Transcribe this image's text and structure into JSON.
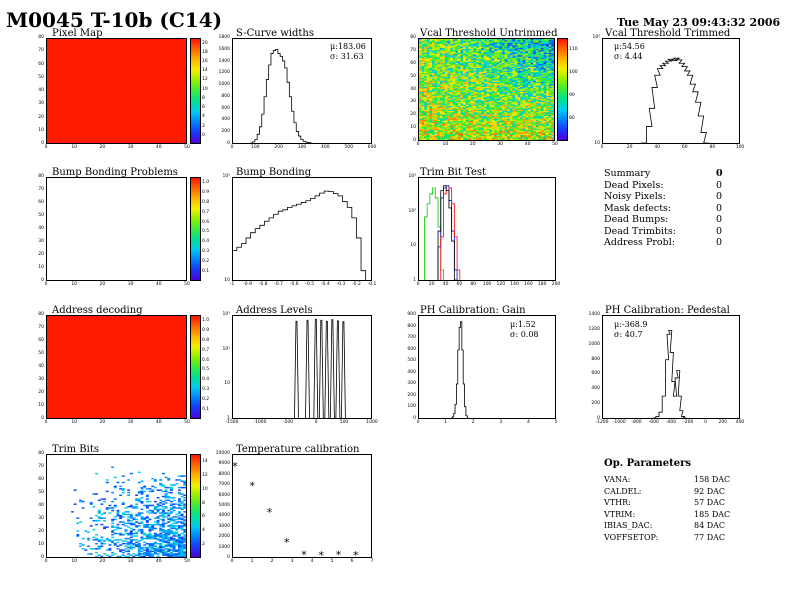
{
  "header": {
    "title": "M0045 T-10b (C14)",
    "date": "Tue May 23 09:43:32 2006"
  },
  "panels": {
    "pixel_map": {
      "title": "Pixel Map"
    },
    "scurve": {
      "title": "S-Curve widths",
      "mu": "μ:183.06",
      "sigma": "σ: 31.63"
    },
    "vcal_untrimmed": {
      "title": "Vcal Threshold Untrimmed"
    },
    "vcal_trimmed": {
      "title": "Vcal Threshold Trimmed",
      "mu": "μ:54.56",
      "sigma": "σ: 4.44"
    },
    "bump_problems": {
      "title": "Bump Bonding Problems"
    },
    "bump_bonding": {
      "title": "Bump Bonding"
    },
    "trim_bit_test": {
      "title": "Trim Bit Test"
    },
    "address_decoding": {
      "title": "Address decoding"
    },
    "address_levels": {
      "title": "Address Levels"
    },
    "ph_gain": {
      "title": "PH Calibration: Gain",
      "mu": "μ:1.52",
      "sigma": "σ: 0.08"
    },
    "ph_pedestal": {
      "title": "PH Calibration: Pedestal",
      "mu": "μ:-368.9",
      "sigma": "σ: 40.7"
    },
    "trim_bits": {
      "title": "Trim Bits"
    },
    "temperature": {
      "title": "Temperature calibration"
    }
  },
  "summary": {
    "title": "Summary",
    "total": "0",
    "rows": [
      {
        "label": "Dead Pixels:",
        "value": "0"
      },
      {
        "label": "Noisy Pixels:",
        "value": "0"
      },
      {
        "label": "Mask defects:",
        "value": "0"
      },
      {
        "label": "Dead Bumps:",
        "value": "0"
      },
      {
        "label": "Dead Trimbits:",
        "value": "0"
      },
      {
        "label": "Address Probl:",
        "value": "0"
      }
    ]
  },
  "op_params": {
    "title": "Op. Parameters",
    "rows": [
      {
        "label": "VANA:",
        "value": "158 DAC"
      },
      {
        "label": "CALDEL:",
        "value": "92 DAC"
      },
      {
        "label": "VTHR:",
        "value": "57 DAC"
      },
      {
        "label": "VTRIM:",
        "value": "185 DAC"
      },
      {
        "label": "IBIAS_DAC:",
        "value": "84 DAC"
      },
      {
        "label": "VOFFSETOP:",
        "value": "77 DAC"
      }
    ]
  },
  "chart_data": [
    {
      "id": "pixel_map",
      "type": "heatmap",
      "xlim": [
        0,
        52
      ],
      "ylim": [
        0,
        80
      ],
      "x_ticks": [
        "0",
        "10",
        "20",
        "30",
        "40",
        "50"
      ],
      "y_ticks": [
        "0",
        "10",
        "20",
        "30",
        "40",
        "50",
        "60",
        "70",
        "80"
      ],
      "z_ticks": [
        "0",
        "2",
        "4",
        "6",
        "8",
        "10",
        "12",
        "14",
        "16",
        "18",
        "20"
      ],
      "fill_color": "#ff1a00"
    },
    {
      "id": "scurve",
      "type": "line",
      "xlim": [
        0,
        600
      ],
      "ylim": [
        0,
        1800
      ],
      "x_ticks": [
        "0",
        "100",
        "200",
        "300",
        "400",
        "500",
        "600"
      ],
      "y_ticks": [
        "0",
        "200",
        "400",
        "600",
        "800",
        "1000",
        "1200",
        "1400",
        "1600",
        "1800"
      ],
      "x": [
        80,
        90,
        100,
        110,
        120,
        130,
        140,
        150,
        160,
        170,
        180,
        190,
        200,
        210,
        220,
        230,
        240,
        250,
        260,
        270,
        280,
        290,
        300,
        310,
        320,
        330,
        340
      ],
      "values": [
        0,
        20,
        60,
        150,
        280,
        500,
        800,
        1100,
        1350,
        1550,
        1600,
        1620,
        1550,
        1500,
        1420,
        1300,
        1050,
        800,
        550,
        350,
        200,
        120,
        60,
        30,
        15,
        5,
        0
      ]
    },
    {
      "id": "vcal_untrimmed",
      "type": "heatmap",
      "xlim": [
        0,
        52
      ],
      "ylim": [
        0,
        80
      ],
      "x_ticks": [
        "0",
        "10",
        "20",
        "30",
        "40",
        "50"
      ],
      "y_ticks": [
        "0",
        "10",
        "20",
        "30",
        "40",
        "50",
        "60",
        "70",
        "80"
      ],
      "z_ticks": [
        "80",
        "90",
        "100",
        "110"
      ]
    },
    {
      "id": "vcal_trimmed",
      "type": "line",
      "log_y": true,
      "xlim": [
        0,
        100
      ],
      "ylim": [
        1,
        1000
      ],
      "x_ticks": [
        "0",
        "20",
        "40",
        "60",
        "80",
        "100"
      ],
      "y_ticks": [
        "10",
        "10²"
      ],
      "x": [
        30,
        34,
        36,
        38,
        40,
        42,
        44,
        46,
        48,
        50,
        52,
        54,
        56,
        58,
        60,
        62,
        64,
        66,
        68,
        70,
        72,
        74,
        76
      ],
      "values": [
        1,
        3,
        10,
        40,
        90,
        140,
        170,
        200,
        230,
        260,
        240,
        280,
        250,
        200,
        160,
        120,
        90,
        50,
        30,
        15,
        6,
        2,
        1
      ]
    },
    {
      "id": "bump_problems",
      "type": "heatmap",
      "xlim": [
        0,
        52
      ],
      "ylim": [
        0,
        80
      ],
      "x_ticks": [
        "0",
        "10",
        "20",
        "30",
        "40",
        "50"
      ],
      "y_ticks": [
        "0",
        "10",
        "20",
        "30",
        "40",
        "50",
        "60",
        "70",
        "80"
      ],
      "z_ticks": [
        "0.1",
        "0.2",
        "0.3",
        "0.4",
        "0.5",
        "0.6",
        "0.7",
        "0.8",
        "0.9",
        "1.0"
      ]
    },
    {
      "id": "bump_bonding",
      "type": "line",
      "log_y": true,
      "xlim": [
        -1.0,
        -0.1
      ],
      "ylim": [
        3,
        800
      ],
      "x_ticks": [
        "-1",
        "-0.9",
        "-0.8",
        "-0.7",
        "-0.6",
        "-0.5",
        "-0.4",
        "-0.3",
        "-0.2",
        "-0.1"
      ],
      "y_ticks": [
        "10",
        "10²"
      ],
      "x": [
        -0.99,
        -0.96,
        -0.93,
        -0.9,
        -0.87,
        -0.84,
        -0.81,
        -0.78,
        -0.75,
        -0.72,
        -0.69,
        -0.66,
        -0.63,
        -0.6,
        -0.57,
        -0.54,
        -0.51,
        -0.48,
        -0.45,
        -0.42,
        -0.39,
        -0.36,
        -0.33,
        -0.3,
        -0.27,
        -0.24,
        -0.21,
        -0.18,
        -0.15
      ],
      "values": [
        15,
        18,
        22,
        30,
        40,
        50,
        60,
        75,
        90,
        110,
        130,
        140,
        160,
        175,
        190,
        210,
        230,
        260,
        300,
        350,
        390,
        380,
        340,
        300,
        220,
        160,
        90,
        30,
        5
      ]
    },
    {
      "id": "trim_bit_test",
      "type": "line",
      "log_y": true,
      "xlim": [
        0,
        200
      ],
      "ylim": [
        1,
        1200
      ],
      "x_ticks": [
        "0",
        "20",
        "40",
        "60",
        "80",
        "100",
        "120",
        "140",
        "160",
        "180",
        "200"
      ],
      "y_ticks": [
        "1",
        "10",
        "10²",
        "10³"
      ],
      "series": [
        {
          "color": "#00cc00",
          "x": [
            10,
            14,
            18,
            22,
            26,
            30,
            34
          ],
          "values": [
            80,
            200,
            400,
            600,
            300,
            40,
            2
          ]
        },
        {
          "color": "#0000ff",
          "x": [
            30,
            34,
            38,
            42,
            46,
            50,
            54
          ],
          "values": [
            10,
            300,
            600,
            700,
            250,
            30,
            2
          ]
        },
        {
          "color": "#ff0000",
          "x": [
            34,
            38,
            42,
            46,
            50,
            54,
            58
          ],
          "values": [
            20,
            400,
            500,
            600,
            200,
            20,
            2
          ]
        },
        {
          "color": "#000000",
          "x": [
            30,
            34,
            38,
            42,
            46,
            50,
            54
          ],
          "values": [
            30,
            500,
            700,
            500,
            150,
            15,
            1
          ]
        }
      ]
    },
    {
      "id": "address_decoding",
      "type": "heatmap",
      "xlim": [
        0,
        52
      ],
      "ylim": [
        0,
        80
      ],
      "x_ticks": [
        "0",
        "10",
        "20",
        "30",
        "40",
        "50"
      ],
      "y_ticks": [
        "0",
        "10",
        "20",
        "30",
        "40",
        "50",
        "60",
        "70",
        "80"
      ],
      "z_ticks": [
        "0.1",
        "0.2",
        "0.3",
        "0.4",
        "0.5",
        "0.6",
        "0.7",
        "0.8",
        "0.9",
        "1.0"
      ],
      "fill_color": "#ff1a00"
    },
    {
      "id": "address_levels",
      "type": "line",
      "log_y": true,
      "xlim": [
        -1500,
        1000
      ],
      "ylim": [
        1,
        1000
      ],
      "x_ticks": [
        "-1500",
        "-1000",
        "-500",
        "0",
        "500",
        "1000"
      ],
      "y_ticks": [
        "1",
        "10",
        "10²",
        "10³"
      ],
      "peaks": [
        -350,
        -150,
        0,
        100,
        200,
        300,
        400,
        500
      ],
      "peak_values": [
        700,
        750,
        800,
        750,
        700,
        780,
        720,
        680
      ]
    },
    {
      "id": "ph_gain",
      "type": "line",
      "xlim": [
        0,
        5
      ],
      "ylim": [
        0,
        900
      ],
      "x_ticks": [
        "0",
        "1",
        "2",
        "3",
        "4",
        "5"
      ],
      "y_ticks": [
        "0",
        "100",
        "200",
        "300",
        "400",
        "500",
        "600",
        "700",
        "800",
        "900"
      ],
      "x": [
        1.2,
        1.25,
        1.3,
        1.35,
        1.4,
        1.45,
        1.5,
        1.55,
        1.6,
        1.65,
        1.7,
        1.75,
        1.8
      ],
      "values": [
        0,
        10,
        40,
        120,
        300,
        600,
        800,
        850,
        600,
        300,
        100,
        20,
        0
      ]
    },
    {
      "id": "ph_pedestal",
      "type": "line",
      "xlim": [
        -1200,
        500
      ],
      "ylim": [
        0,
        1400
      ],
      "x_ticks": [
        "-1200",
        "-1000",
        "-800",
        "-600",
        "-400",
        "-200",
        "0",
        "200",
        "400"
      ],
      "y_ticks": [
        "0",
        "200",
        "400",
        "600",
        "800",
        "1000",
        "1200",
        "1400"
      ],
      "x": [
        -560,
        -520,
        -480,
        -440,
        -400,
        -380,
        -360,
        -340,
        -320,
        -300,
        -280,
        -260,
        -240,
        -220,
        -200,
        -180
      ],
      "values": [
        0,
        20,
        80,
        300,
        800,
        1150,
        1200,
        900,
        500,
        300,
        550,
        650,
        300,
        100,
        20,
        0
      ]
    },
    {
      "id": "trim_bits",
      "type": "heatmap",
      "xlim": [
        0,
        52
      ],
      "ylim": [
        0,
        80
      ],
      "x_ticks": [
        "0",
        "10",
        "20",
        "30",
        "40",
        "50"
      ],
      "y_ticks": [
        "0",
        "10",
        "20",
        "30",
        "40",
        "50",
        "60",
        "70",
        "80"
      ],
      "z_ticks": [
        "2",
        "4",
        "6",
        "8",
        "10",
        "12",
        "14"
      ]
    },
    {
      "id": "temperature",
      "type": "scatter",
      "xlim": [
        0,
        8
      ],
      "ylim": [
        0,
        10000
      ],
      "x_ticks": [
        "0",
        "1",
        "2",
        "3",
        "4",
        "5",
        "6",
        "7"
      ],
      "y_ticks": [
        "0",
        "1000",
        "2000",
        "3000",
        "4000",
        "5000",
        "6000",
        "7000",
        "8000",
        "9000",
        "10000"
      ],
      "x": [
        0,
        1,
        2,
        3,
        4,
        5,
        6,
        7
      ],
      "values": [
        8900,
        7000,
        4400,
        1450,
        250,
        200,
        230,
        200
      ]
    }
  ]
}
